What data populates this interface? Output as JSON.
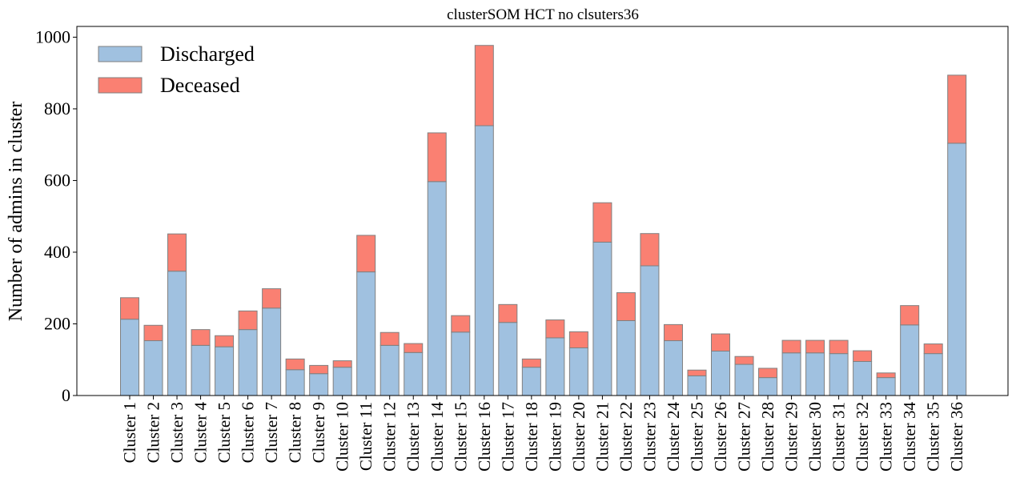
{
  "chart_data": {
    "type": "bar",
    "stacked": true,
    "title": "clusterSOM HCT no clsuters36",
    "xlabel": "",
    "ylabel": "Number of admins in cluster",
    "ylim": [
      0,
      1030
    ],
    "yticks": [
      0,
      200,
      400,
      600,
      800,
      1000
    ],
    "grid": false,
    "legend_position": "top-left",
    "categories": [
      "Cluster 1",
      "Cluster 2",
      "Cluster 3",
      "Cluster 4",
      "Cluster 5",
      "Cluster 6",
      "Cluster 7",
      "Cluster 8",
      "Cluster 9",
      "Cluster 10",
      "Cluster 11",
      "Cluster 12",
      "Cluster 13",
      "Cluster 14",
      "Cluster 15",
      "Cluster 16",
      "Cluster 17",
      "Cluster 18",
      "Cluster 19",
      "Cluster 20",
      "Cluster 21",
      "Cluster 22",
      "Cluster 23",
      "Cluster 24",
      "Cluster 25",
      "Cluster 26",
      "Cluster 27",
      "Cluster 28",
      "Cluster 29",
      "Cluster 30",
      "Cluster 31",
      "Cluster 32",
      "Cluster 33",
      "Cluster 34",
      "Cluster 35",
      "Cluster 36"
    ],
    "series": [
      {
        "name": "Discharged",
        "color": "#a0c1e0",
        "values": [
          213,
          153,
          347,
          140,
          136,
          184,
          244,
          72,
          61,
          79,
          345,
          140,
          120,
          597,
          177,
          753,
          204,
          79,
          161,
          133,
          428,
          209,
          362,
          153,
          55,
          124,
          87,
          50,
          119,
          119,
          117,
          95,
          50,
          197,
          117,
          704
        ]
      },
      {
        "name": "Deceased",
        "color": "#fa8072",
        "values": [
          60,
          43,
          104,
          44,
          31,
          52,
          54,
          30,
          23,
          18,
          102,
          36,
          25,
          136,
          46,
          224,
          50,
          23,
          50,
          45,
          110,
          78,
          90,
          45,
          16,
          48,
          22,
          26,
          35,
          35,
          37,
          30,
          13,
          54,
          27,
          190
        ]
      }
    ],
    "edge_color": "#808080"
  }
}
